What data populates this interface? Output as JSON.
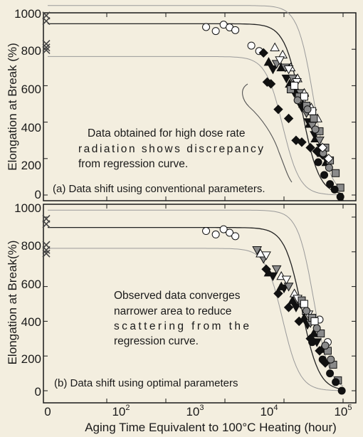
{
  "colors": {
    "background": "#f3eedf",
    "marker_dark": "#111111",
    "marker_gray": "#8a8a8a",
    "marker_open": "#ffffff",
    "curve": "#222222",
    "band": "#9a9a9a"
  },
  "chart_data": [
    {
      "type": "scatter",
      "panel_label": "(a) Data shift using conventional parameters.",
      "xlabel": "",
      "ylabel": "Elongation at Break (%)",
      "xscale": "log",
      "xlim": [
        1,
        100000
      ],
      "ylim": [
        0,
        1000
      ],
      "y_ticks": [
        "0",
        "200",
        "400",
        "600",
        "800",
        "1000"
      ],
      "annotation": [
        "Data obtained for high dose rate",
        "radiation shows discrepancy",
        "from regression curve."
      ],
      "grid": false,
      "series": [
        {
          "marker": "open-circle",
          "points": [
            [
              480,
              922
            ],
            [
              700,
              900
            ],
            [
              950,
              935
            ],
            [
              1200,
              920
            ],
            [
              1500,
              905
            ],
            [
              2800,
              820
            ],
            [
              3800,
              790
            ]
          ]
        },
        {
          "marker": "x",
          "points": [
            [
              1,
              985
            ],
            [
              1,
              955
            ],
            [
              1,
              830
            ],
            [
              1,
              810
            ],
            [
              1,
              795
            ]
          ]
        },
        {
          "marker": "filled-diamond",
          "points": [
            [
              4500,
              780
            ],
            [
              5200,
              620
            ],
            [
              6000,
              610
            ],
            [
              8000,
              470
            ],
            [
              12000,
              420
            ],
            [
              16000,
              300
            ],
            [
              20000,
              290
            ],
            [
              28000,
              260
            ],
            [
              36000,
              240
            ],
            [
              45000,
              220
            ]
          ]
        },
        {
          "marker": "filled-triangle-up",
          "points": [
            [
              5500,
              730
            ],
            [
              9000,
              700
            ],
            [
              12500,
              610
            ],
            [
              16000,
              580
            ],
            [
              21000,
              500
            ],
            [
              27000,
              390
            ],
            [
              34000,
              310
            ],
            [
              43000,
              230
            ],
            [
              52000,
              180
            ]
          ]
        },
        {
          "marker": "filled-triangle-down",
          "points": [
            [
              6500,
              690
            ],
            [
              11000,
              640
            ],
            [
              15000,
              560
            ],
            [
              20000,
              480
            ],
            [
              26000,
              400
            ],
            [
              33000,
              330
            ],
            [
              42000,
              260
            ],
            [
              55000,
              180
            ]
          ]
        },
        {
          "marker": "gray-triangle-down",
          "points": [
            [
              7500,
              720
            ],
            [
              10500,
              700
            ],
            [
              14000,
              640
            ],
            [
              19000,
              560
            ],
            [
              24000,
              450
            ],
            [
              30000,
              380
            ],
            [
              40000,
              300
            ]
          ]
        },
        {
          "marker": "open-triangle-up",
          "points": [
            [
              7000,
              810
            ],
            [
              9500,
              770
            ],
            [
              13000,
              700
            ],
            [
              17000,
              640
            ],
            [
              22000,
              560
            ],
            [
              29000,
              480
            ],
            [
              37000,
              420
            ]
          ]
        },
        {
          "marker": "open-triangle-down",
          "points": [
            [
              8500,
              740
            ],
            [
              12000,
              690
            ],
            [
              16500,
              620
            ],
            [
              22000,
              530
            ],
            [
              30000,
              450
            ]
          ]
        },
        {
          "marker": "gray-square",
          "points": [
            [
              13000,
              580
            ],
            [
              18000,
              540
            ],
            [
              24000,
              490
            ],
            [
              32000,
              420
            ],
            [
              40000,
              350
            ],
            [
              50000,
              260
            ],
            [
              60000,
              190
            ],
            [
              75000,
              120
            ],
            [
              90000,
              40
            ]
          ]
        },
        {
          "marker": "open-square",
          "points": [
            [
              15000,
              600
            ],
            [
              22000,
              540
            ],
            [
              30000,
              460
            ]
          ]
        },
        {
          "marker": "gray-circle",
          "points": [
            [
              17000,
              520
            ],
            [
              25000,
              470
            ],
            [
              34000,
              360
            ],
            [
              46000,
              230
            ],
            [
              58000,
              150
            ]
          ]
        },
        {
          "marker": "filled-circle",
          "points": [
            [
              38000,
              180
            ],
            [
              48000,
              110
            ],
            [
              60000,
              60
            ],
            [
              72000,
              30
            ],
            [
              90000,
              -10
            ]
          ]
        },
        {
          "marker": "open-diamond",
          "points": [
            [
              45000,
              260
            ],
            [
              57000,
              200
            ]
          ]
        }
      ]
    },
    {
      "type": "scatter",
      "panel_label": "(b) Data shift using optimal parameters",
      "xlabel": "Aging Time Equivalent to 100°C Heating (hour)",
      "ylabel": "Elongation at Break(%)",
      "xscale": "log",
      "xlim": [
        1,
        100000
      ],
      "ylim": [
        0,
        1000
      ],
      "x_ticks": [
        {
          "base": "0",
          "exp": ""
        },
        {
          "base": "10",
          "exp": "2"
        },
        {
          "base": "10",
          "exp": "3"
        },
        {
          "base": "10",
          "exp": "4"
        },
        {
          "base": "10",
          "exp": "5"
        }
      ],
      "y_ticks": [
        "0",
        "200",
        "400",
        "600",
        "800",
        "1000"
      ],
      "annotation": [
        "Observed data converges",
        "narrower area to reduce",
        "scattering from the",
        "regression curve."
      ],
      "grid": false,
      "series": [
        {
          "marker": "open-circle",
          "points": [
            [
              480,
              920
            ],
            [
              700,
              900
            ],
            [
              950,
              930
            ],
            [
              1200,
              910
            ],
            [
              1500,
              890
            ],
            [
              40000,
              410
            ],
            [
              55000,
              280
            ]
          ]
        },
        {
          "marker": "x",
          "points": [
            [
              1,
              990
            ],
            [
              1,
              960
            ],
            [
              1,
              840
            ],
            [
              1,
              810
            ],
            [
              1,
              790
            ]
          ]
        },
        {
          "marker": "filled-diamond",
          "points": [
            [
              5000,
              700
            ],
            [
              8000,
              560
            ],
            [
              12000,
              480
            ],
            [
              18000,
              400
            ],
            [
              28000,
              300
            ],
            [
              40000,
              230
            ],
            [
              50000,
              160
            ]
          ]
        },
        {
          "marker": "filled-triangle-up",
          "points": [
            [
              5500,
              680
            ],
            [
              9000,
              600
            ],
            [
              14000,
              520
            ],
            [
              22000,
              420
            ],
            [
              32000,
              330
            ],
            [
              44000,
              240
            ]
          ]
        },
        {
          "marker": "filled-triangle-down",
          "points": [
            [
              6500,
              660
            ],
            [
              10000,
              590
            ],
            [
              16000,
              480
            ],
            [
              25000,
              380
            ],
            [
              36000,
              280
            ]
          ]
        },
        {
          "marker": "gray-triangle-down",
          "points": [
            [
              3500,
              810
            ],
            [
              4500,
              760
            ],
            [
              7500,
              700
            ],
            [
              12000,
              600
            ],
            [
              19000,
              500
            ],
            [
              28000,
              390
            ]
          ]
        },
        {
          "marker": "open-triangle-up",
          "points": [
            [
              4000,
              790
            ],
            [
              9000,
              660
            ],
            [
              15000,
              560
            ],
            [
              24000,
              460
            ]
          ]
        },
        {
          "marker": "open-triangle-down",
          "points": [
            [
              5000,
              780
            ],
            [
              11000,
              640
            ],
            [
              17000,
              530
            ],
            [
              26000,
              440
            ]
          ]
        },
        {
          "marker": "gray-square",
          "points": [
            [
              20000,
              520
            ],
            [
              30000,
              420
            ],
            [
              42000,
              330
            ],
            [
              55000,
              230
            ],
            [
              68000,
              150
            ],
            [
              82000,
              60
            ]
          ]
        },
        {
          "marker": "open-square",
          "points": [
            [
              22000,
              500
            ],
            [
              33000,
              400
            ]
          ]
        },
        {
          "marker": "gray-circle",
          "points": [
            [
              24000,
              460
            ],
            [
              36000,
              360
            ],
            [
              50000,
              260
            ],
            [
              62000,
              180
            ]
          ]
        },
        {
          "marker": "filled-circle",
          "points": [
            [
              30000,
              280
            ],
            [
              45000,
              180
            ],
            [
              60000,
              100
            ],
            [
              75000,
              50
            ],
            [
              95000,
              0
            ]
          ]
        }
      ]
    }
  ]
}
